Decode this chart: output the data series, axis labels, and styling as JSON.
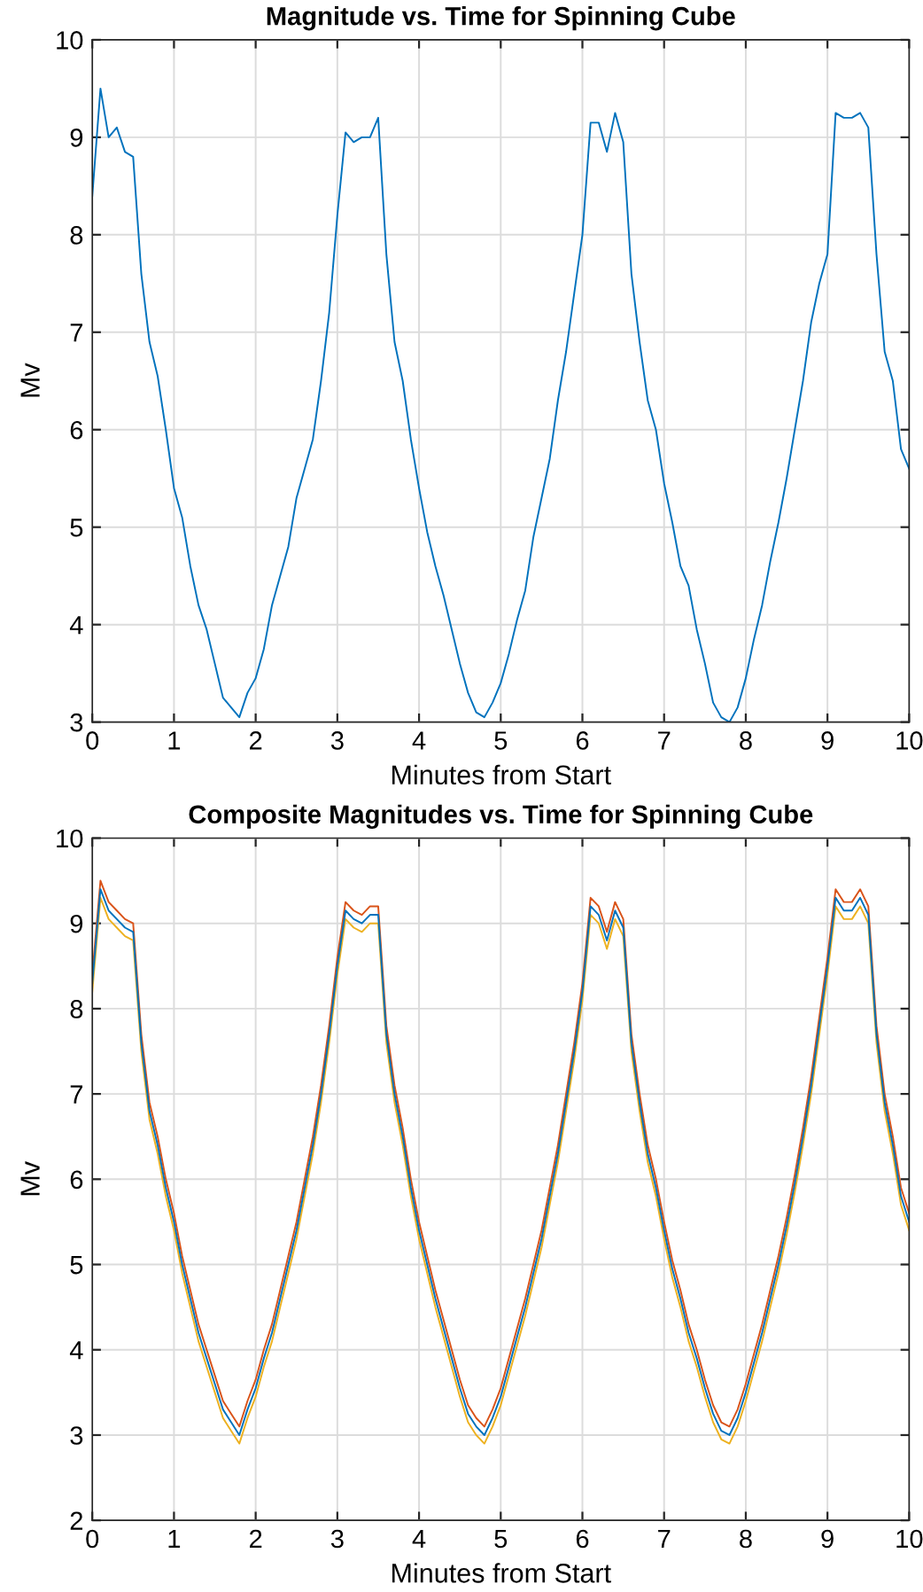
{
  "chart_data": [
    {
      "type": "line",
      "title": "Magnitude vs. Time for Spinning Cube",
      "xlabel": "Minutes from Start",
      "ylabel": "Mv",
      "xlim": [
        0,
        10
      ],
      "ylim": [
        3,
        10
      ],
      "xticks": [
        0,
        1,
        2,
        3,
        4,
        5,
        6,
        7,
        8,
        9,
        10
      ],
      "yticks": [
        3,
        4,
        5,
        6,
        7,
        8,
        9,
        10
      ],
      "grid": true,
      "x": [
        0,
        0.1,
        0.2,
        0.3,
        0.4,
        0.5,
        0.6,
        0.7,
        0.8,
        0.9,
        1,
        1.1,
        1.2,
        1.3,
        1.4,
        1.5,
        1.6,
        1.7,
        1.8,
        1.9,
        2,
        2.1,
        2.2,
        2.3,
        2.4,
        2.5,
        2.6,
        2.7,
        2.8,
        2.9,
        3,
        3.1,
        3.2,
        3.3,
        3.4,
        3.5,
        3.6,
        3.7,
        3.8,
        3.9,
        4,
        4.1,
        4.2,
        4.3,
        4.4,
        4.5,
        4.6,
        4.7,
        4.8,
        4.9,
        5,
        5.1,
        5.2,
        5.3,
        5.4,
        5.5,
        5.6,
        5.7,
        5.8,
        5.9,
        6,
        6.1,
        6.2,
        6.3,
        6.4,
        6.5,
        6.6,
        6.7,
        6.8,
        6.9,
        7,
        7.1,
        7.2,
        7.3,
        7.4,
        7.5,
        7.6,
        7.7,
        7.8,
        7.9,
        8,
        8.1,
        8.2,
        8.3,
        8.4,
        8.5,
        8.6,
        8.7,
        8.8,
        8.9,
        9,
        9.1,
        9.2,
        9.3,
        9.4,
        9.5,
        9.6,
        9.7,
        9.8,
        9.9,
        10
      ],
      "series": [
        {
          "color": "#0072bd",
          "values": [
            8.4,
            9.5,
            9.0,
            9.1,
            8.85,
            8.8,
            7.6,
            6.9,
            6.55,
            6.0,
            5.4,
            5.1,
            4.6,
            4.2,
            3.95,
            3.6,
            3.25,
            3.15,
            3.05,
            3.3,
            3.45,
            3.75,
            4.2,
            4.5,
            4.8,
            5.3,
            5.6,
            5.9,
            6.5,
            7.2,
            8.2,
            9.05,
            8.95,
            9.0,
            9.0,
            9.2,
            7.8,
            6.9,
            6.5,
            5.9,
            5.4,
            4.95,
            4.6,
            4.3,
            3.95,
            3.6,
            3.3,
            3.1,
            3.05,
            3.2,
            3.4,
            3.7,
            4.05,
            4.35,
            4.9,
            5.3,
            5.7,
            6.3,
            6.8,
            7.4,
            8.0,
            9.15,
            9.15,
            8.85,
            9.25,
            8.95,
            7.6,
            6.9,
            6.3,
            6.0,
            5.45,
            5.05,
            4.6,
            4.4,
            3.95,
            3.6,
            3.2,
            3.05,
            3.0,
            3.15,
            3.45,
            3.85,
            4.2,
            4.65,
            5.05,
            5.5,
            6.0,
            6.5,
            7.1,
            7.5,
            7.8,
            9.25,
            9.2,
            9.2,
            9.25,
            9.1,
            7.8,
            6.8,
            6.5,
            5.8,
            5.6
          ]
        }
      ]
    },
    {
      "type": "line",
      "title": "Composite Magnitudes vs. Time for Spinning Cube",
      "xlabel": "Minutes from Start",
      "ylabel": "Mv",
      "xlim": [
        0,
        10
      ],
      "ylim": [
        2,
        10
      ],
      "xticks": [
        0,
        1,
        2,
        3,
        4,
        5,
        6,
        7,
        8,
        9,
        10
      ],
      "yticks": [
        2,
        3,
        4,
        5,
        6,
        7,
        8,
        9,
        10
      ],
      "grid": true,
      "x": [
        0,
        0.1,
        0.2,
        0.3,
        0.4,
        0.5,
        0.6,
        0.7,
        0.8,
        0.9,
        1,
        1.1,
        1.2,
        1.3,
        1.4,
        1.5,
        1.6,
        1.7,
        1.8,
        1.9,
        2,
        2.1,
        2.2,
        2.3,
        2.4,
        2.5,
        2.6,
        2.7,
        2.8,
        2.9,
        3,
        3.1,
        3.2,
        3.3,
        3.4,
        3.5,
        3.6,
        3.7,
        3.8,
        3.9,
        4,
        4.1,
        4.2,
        4.3,
        4.4,
        4.5,
        4.6,
        4.7,
        4.8,
        4.9,
        5,
        5.1,
        5.2,
        5.3,
        5.4,
        5.5,
        5.6,
        5.7,
        5.8,
        5.9,
        6,
        6.1,
        6.2,
        6.3,
        6.4,
        6.5,
        6.6,
        6.7,
        6.8,
        6.9,
        7,
        7.1,
        7.2,
        7.3,
        7.4,
        7.5,
        7.6,
        7.7,
        7.8,
        7.9,
        8,
        8.1,
        8.2,
        8.3,
        8.4,
        8.5,
        8.6,
        8.7,
        8.8,
        8.9,
        9,
        9.1,
        9.2,
        9.3,
        9.4,
        9.5,
        9.6,
        9.7,
        9.8,
        9.9,
        10
      ],
      "series": [
        {
          "color": "#d95319",
          "values": [
            8.4,
            9.5,
            9.25,
            9.15,
            9.05,
            9.0,
            7.7,
            6.9,
            6.5,
            6.0,
            5.6,
            5.1,
            4.7,
            4.3,
            4.0,
            3.7,
            3.4,
            3.25,
            3.1,
            3.4,
            3.65,
            4.0,
            4.3,
            4.7,
            5.1,
            5.5,
            6.0,
            6.5,
            7.1,
            7.8,
            8.6,
            9.25,
            9.15,
            9.1,
            9.2,
            9.2,
            7.8,
            7.1,
            6.6,
            6.0,
            5.5,
            5.1,
            4.7,
            4.35,
            4.0,
            3.65,
            3.35,
            3.2,
            3.1,
            3.3,
            3.55,
            3.9,
            4.25,
            4.6,
            5.0,
            5.4,
            5.9,
            6.4,
            7.0,
            7.6,
            8.3,
            9.3,
            9.2,
            8.9,
            9.25,
            9.05,
            7.7,
            7.0,
            6.4,
            6.0,
            5.5,
            5.05,
            4.7,
            4.3,
            4.0,
            3.65,
            3.35,
            3.15,
            3.1,
            3.3,
            3.6,
            3.95,
            4.3,
            4.7,
            5.1,
            5.55,
            6.05,
            6.6,
            7.2,
            7.9,
            8.6,
            9.4,
            9.25,
            9.25,
            9.4,
            9.2,
            7.8,
            7.0,
            6.5,
            5.9,
            5.6
          ]
        },
        {
          "color": "#edb120",
          "values": [
            8.2,
            9.3,
            9.05,
            8.95,
            8.85,
            8.8,
            7.5,
            6.7,
            6.3,
            5.8,
            5.4,
            4.9,
            4.5,
            4.1,
            3.8,
            3.5,
            3.2,
            3.05,
            2.9,
            3.2,
            3.45,
            3.8,
            4.1,
            4.5,
            4.9,
            5.3,
            5.8,
            6.3,
            6.9,
            7.6,
            8.4,
            9.05,
            8.95,
            8.9,
            9.0,
            9.0,
            7.6,
            6.9,
            6.4,
            5.8,
            5.3,
            4.9,
            4.5,
            4.15,
            3.8,
            3.45,
            3.15,
            3.0,
            2.9,
            3.1,
            3.35,
            3.7,
            4.05,
            4.4,
            4.8,
            5.2,
            5.7,
            6.2,
            6.8,
            7.4,
            8.1,
            9.1,
            9.0,
            8.7,
            9.05,
            8.85,
            7.5,
            6.8,
            6.2,
            5.8,
            5.3,
            4.85,
            4.5,
            4.1,
            3.8,
            3.45,
            3.15,
            2.95,
            2.9,
            3.1,
            3.4,
            3.75,
            4.1,
            4.5,
            4.9,
            5.35,
            5.85,
            6.4,
            7.0,
            7.7,
            8.4,
            9.2,
            9.05,
            9.05,
            9.2,
            9.0,
            7.6,
            6.8,
            6.3,
            5.7,
            5.4
          ]
        },
        {
          "color": "#0072bd",
          "values": [
            8.3,
            9.4,
            9.15,
            9.05,
            8.95,
            8.9,
            7.6,
            6.8,
            6.4,
            5.9,
            5.5,
            5.0,
            4.6,
            4.2,
            3.9,
            3.6,
            3.3,
            3.15,
            3.0,
            3.3,
            3.55,
            3.9,
            4.2,
            4.6,
            5.0,
            5.4,
            5.9,
            6.4,
            7.0,
            7.7,
            8.5,
            9.15,
            9.05,
            9.0,
            9.1,
            9.1,
            7.7,
            7.0,
            6.5,
            5.9,
            5.4,
            5.0,
            4.6,
            4.25,
            3.9,
            3.55,
            3.25,
            3.1,
            3.0,
            3.2,
            3.45,
            3.8,
            4.15,
            4.5,
            4.9,
            5.3,
            5.8,
            6.3,
            6.9,
            7.5,
            8.2,
            9.2,
            9.1,
            8.8,
            9.15,
            8.95,
            7.6,
            6.9,
            6.3,
            5.9,
            5.4,
            4.95,
            4.6,
            4.2,
            3.9,
            3.55,
            3.25,
            3.05,
            3.0,
            3.2,
            3.5,
            3.85,
            4.2,
            4.6,
            5.0,
            5.45,
            5.95,
            6.5,
            7.1,
            7.8,
            8.5,
            9.3,
            9.15,
            9.15,
            9.3,
            9.1,
            7.7,
            6.9,
            6.4,
            5.8,
            5.5
          ]
        }
      ]
    }
  ]
}
